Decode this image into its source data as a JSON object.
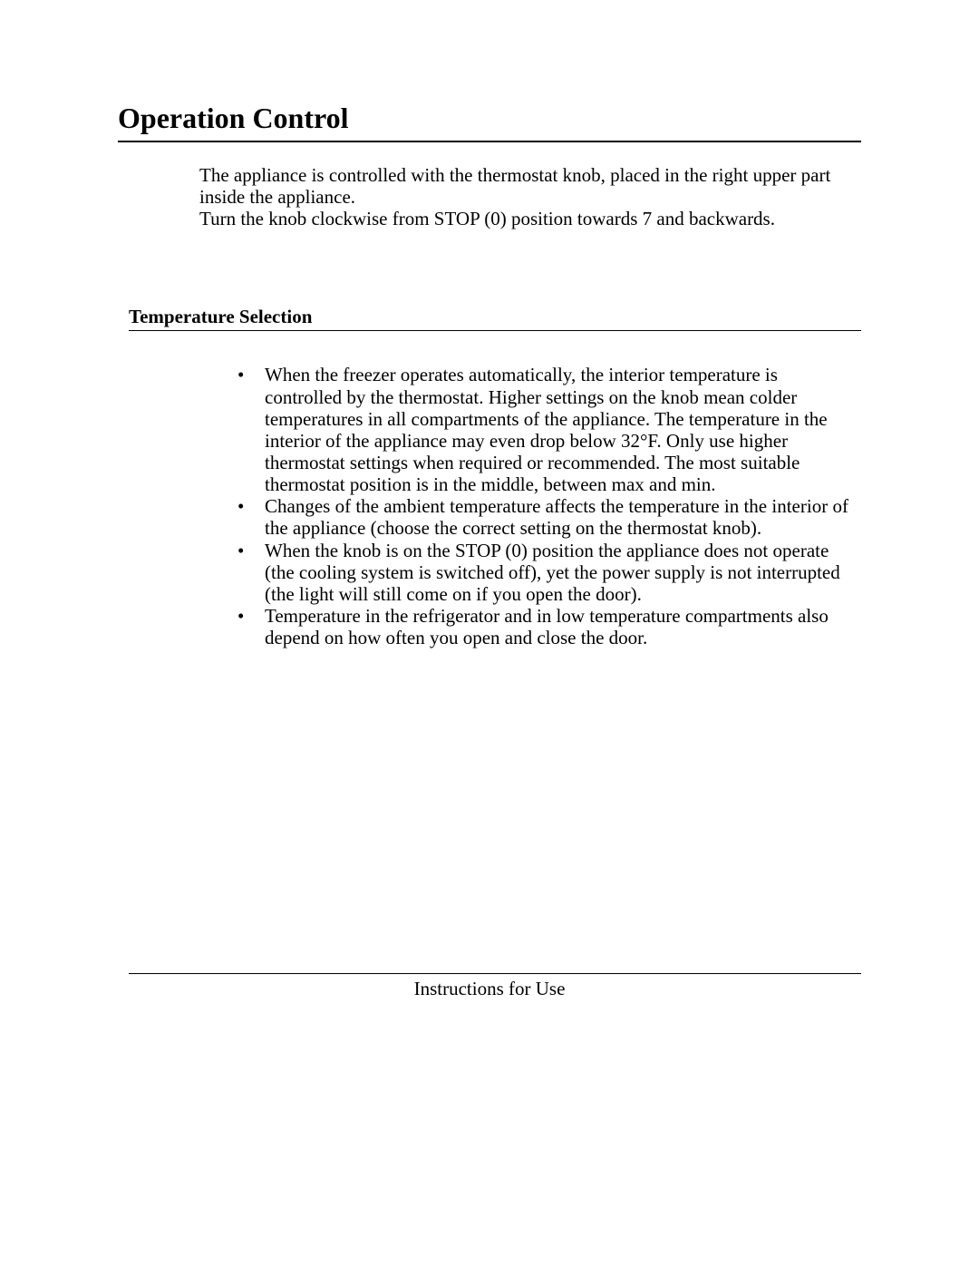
{
  "colors": {
    "text": "#000000",
    "background": "#ffffff",
    "rule": "#000000"
  },
  "typography": {
    "body_font": "Times New Roman",
    "body_size_pt": 16,
    "h1_size_pt": 24,
    "h2_size_pt": 16
  },
  "heading": "Operation Control",
  "intro": {
    "p1": "The appliance is controlled with the thermostat knob, placed in the right upper part inside the appliance.",
    "p2": "Turn the knob clockwise from STOP (0) position towards 7 and backwards."
  },
  "section": {
    "title": "Temperature Selection",
    "items": [
      "When the freezer operates automatically, the interior temperature is controlled by the thermostat.  Higher settings on the knob mean colder temperatures in all compartments of the appliance.  The temperature in the interior of the appliance may even drop below 32°F. Only use higher thermostat settings when required or recommended.  The most suitable thermostat position is in the middle, between max and min.",
      "Changes of the ambient temperature affects the temperature in the interior of the appliance (choose the correct setting on the thermostat knob).",
      "When the knob is on the STOP (0) position the appliance does not operate (the cooling system is switched off), yet the power supply is not interrupted (the light will still come on if you open the door).",
      "Temperature in the refrigerator and in low temperature compartments also depend on how often you open and close the door."
    ]
  },
  "footer": "Instructions for Use"
}
